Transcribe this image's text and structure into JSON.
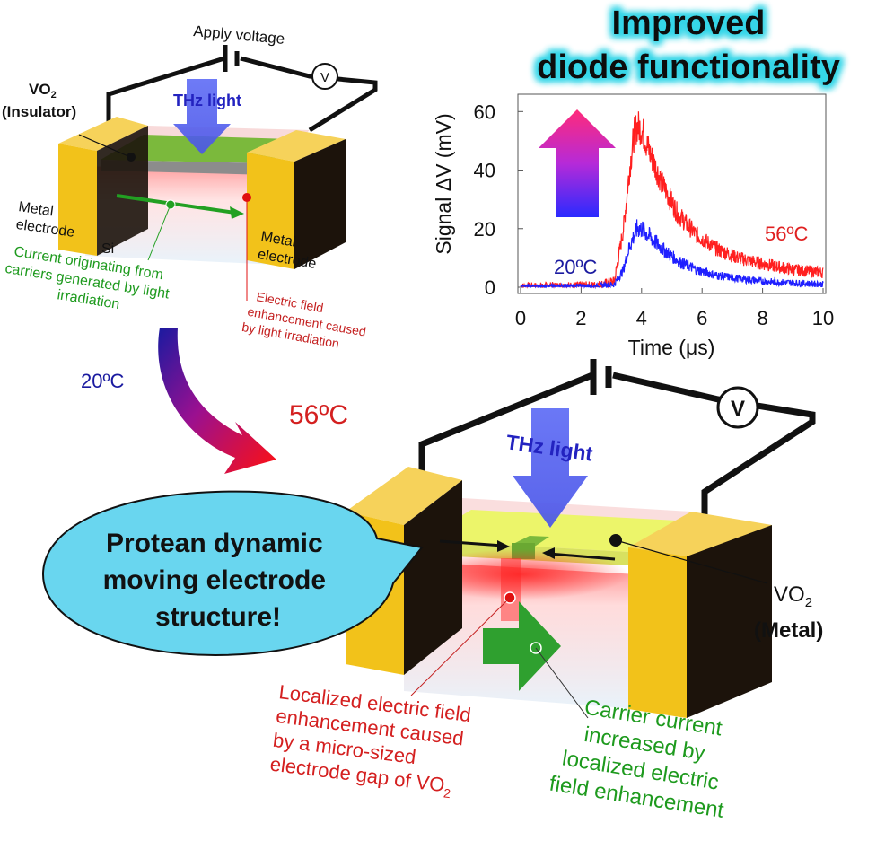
{
  "top_device": {
    "apply_voltage": "Apply voltage",
    "voltmeter": "V",
    "thz_light": "THz light",
    "vo2_main": "VO",
    "vo2_sub": "2",
    "vo2_state": "(Insulator)",
    "metal_electrode_left": [
      "Metal",
      "electrode"
    ],
    "metal_electrode_right": [
      "Metal",
      "electrode"
    ],
    "si": "Si",
    "current_note": [
      "Current originating from",
      "carriers generated by light",
      "irradiation"
    ],
    "field_note": [
      "Electric field",
      "enhancement caused",
      "by light irradiation"
    ]
  },
  "temps": {
    "low": "20ºC",
    "high": "56ºC"
  },
  "bottom_device": {
    "voltmeter": "V",
    "thz_light": "THz light",
    "bubble": [
      "Protean dynamic",
      "moving electrode",
      "structure!"
    ],
    "vo2_main": "VO",
    "vo2_sub": "2",
    "vo2_state": "(Metal)",
    "localized_note": [
      "Localized electric field",
      "enhancement caused",
      "by a micro-sized",
      "electrode gap of VO"
    ],
    "localized_sub": "2",
    "carrier_note": [
      "Carrier current",
      "increased by",
      "localized electric",
      "field enhancement"
    ]
  },
  "headline": [
    "Improved",
    "diode functionality"
  ],
  "chart_data": {
    "type": "line",
    "xlabel": "Time (μs)",
    "ylabel": "Signal ΔV (mV)",
    "xlim": [
      0,
      10
    ],
    "ylim": [
      0,
      65
    ],
    "x_ticks": [
      "0",
      "2",
      "4",
      "6",
      "8",
      "10"
    ],
    "y_ticks": [
      "0",
      "20",
      "40",
      "60"
    ],
    "series": [
      {
        "name": "56ºC",
        "color": "#ff1f1f",
        "x": [
          0,
          2.5,
          3.1,
          3.4,
          3.6,
          3.75,
          3.85,
          4.0,
          4.3,
          4.7,
          5.2,
          5.8,
          6.5,
          7.2,
          8.0,
          9.0,
          10.0
        ],
        "y": [
          0,
          0.5,
          2,
          20,
          40,
          52,
          55,
          54,
          45,
          35,
          25,
          18,
          13,
          10,
          8,
          6,
          5
        ]
      },
      {
        "name": "20ºC",
        "color": "#1f1fff",
        "x": [
          0,
          2.5,
          3.1,
          3.4,
          3.6,
          3.85,
          4.0,
          4.3,
          4.7,
          5.2,
          5.8,
          6.5,
          7.2,
          8.0,
          9.0,
          10.0
        ],
        "y": [
          0,
          0.3,
          1,
          6,
          14,
          20,
          20,
          17,
          13,
          9,
          6,
          4,
          3,
          2,
          1.5,
          1
        ]
      }
    ]
  },
  "colors": {
    "electrode": "#f2c21a",
    "electrode_dark": "#1c130b",
    "insulator_film": "#7bb93c",
    "metal_film": "#ecf56a",
    "gap": "#7bb93c",
    "bubble": "#69d6ef",
    "red_text": "#d42020",
    "green_text": "#1e9a1e",
    "blue_text": "#1a1aa0",
    "thz_arrow": "#5a66f0"
  }
}
